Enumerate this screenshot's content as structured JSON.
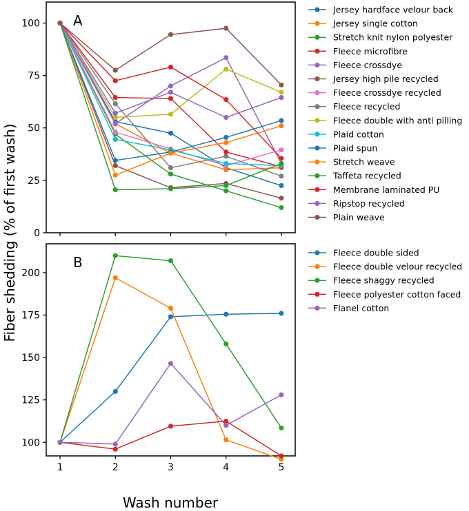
{
  "chart_data": [
    {
      "type": "line",
      "panel_label": "A",
      "x": [
        1,
        2,
        3,
        4,
        5
      ],
      "ylim": [
        0,
        110
      ],
      "yticks": [
        0,
        25,
        50,
        75,
        100
      ],
      "series": [
        {
          "name": "Jersey hardface velour back",
          "color": "#1f77b4",
          "values": [
            100,
            53,
            47.5,
            31,
            22.5
          ]
        },
        {
          "name": "Jersey single cotton",
          "color": "#ff7f0e",
          "values": [
            100,
            52,
            38,
            30,
            31
          ]
        },
        {
          "name": "Stretch knit nylon polyester",
          "color": "#2ca02c",
          "values": [
            100,
            47,
            28,
            20,
            12
          ]
        },
        {
          "name": "Fleece microfibre",
          "color": "#d62728",
          "values": [
            100,
            64.5,
            64,
            38.5,
            31.5
          ]
        },
        {
          "name": "Fleece crossdye",
          "color": "#9467bd",
          "values": [
            100,
            52,
            70,
            83.5,
            33
          ]
        },
        {
          "name": "Jersey high pile recycled",
          "color": "#8c564b",
          "values": [
            100,
            32,
            21.5,
            23.5,
            16.5
          ]
        },
        {
          "name": "Fleece crossdye recycled",
          "color": "#e377c2",
          "values": [
            100,
            48,
            40,
            32,
            39.5
          ]
        },
        {
          "name": "Fleece recycled",
          "color": "#7f7f7f",
          "values": [
            100,
            61.5,
            31,
            36.5,
            27
          ]
        },
        {
          "name": "Fleece double  with anti pilling",
          "color": "#bcbd22",
          "values": [
            100,
            55,
            56.5,
            78,
            67
          ]
        },
        {
          "name": "Plaid cotton",
          "color": "#17becf",
          "values": [
            100,
            44.5,
            39.5,
            33,
            32
          ]
        },
        {
          "name": "Plaid spun",
          "color": "#1f77b4",
          "values": [
            100,
            34.5,
            38.5,
            45.5,
            53.5
          ]
        },
        {
          "name": "Stretch weave",
          "color": "#ff7f0e",
          "values": [
            100,
            27.5,
            38,
            43,
            51
          ]
        },
        {
          "name": "Taffeta recycled",
          "color": "#2ca02c",
          "values": [
            100,
            20.5,
            21,
            22.5,
            33
          ]
        },
        {
          "name": "Membrane laminated PU",
          "color": "#d62728",
          "values": [
            100,
            72.5,
            79,
            63.5,
            35.5
          ]
        },
        {
          "name": "Ripstop recycled",
          "color": "#9467bd",
          "values": [
            100,
            57,
            67,
            55,
            64.5
          ]
        },
        {
          "name": "Plain weave",
          "color": "#8c564b",
          "values": [
            100,
            77.5,
            94.5,
            97.5,
            70.5
          ]
        }
      ]
    },
    {
      "type": "line",
      "panel_label": "B",
      "x": [
        1,
        2,
        3,
        4,
        5
      ],
      "ylim": [
        92,
        217
      ],
      "yticks": [
        100,
        125,
        150,
        175,
        200
      ],
      "series": [
        {
          "name": "Fleece double sided",
          "color": "#1f77b4",
          "values": [
            100,
            130,
            174,
            175.5,
            176
          ]
        },
        {
          "name": "Fleece double velour recycled",
          "color": "#ff7f0e",
          "values": [
            100,
            197,
            179,
            101.5,
            90
          ]
        },
        {
          "name": "Fleece shaggy recycled",
          "color": "#2ca02c",
          "values": [
            100,
            210,
            207,
            158,
            108.5
          ]
        },
        {
          "name": "Fleece polyester cotton faced",
          "color": "#d62728",
          "values": [
            100,
            96,
            109.5,
            112.5,
            92
          ]
        },
        {
          "name": "Flanel cotton",
          "color": "#9467bd",
          "values": [
            100,
            99,
            146.5,
            110,
            128
          ]
        }
      ]
    }
  ],
  "xlabel": "Wash number",
  "ylabel": "Fiber shedding (% of first wash)",
  "xticks": [
    1,
    2,
    3,
    4,
    5
  ]
}
